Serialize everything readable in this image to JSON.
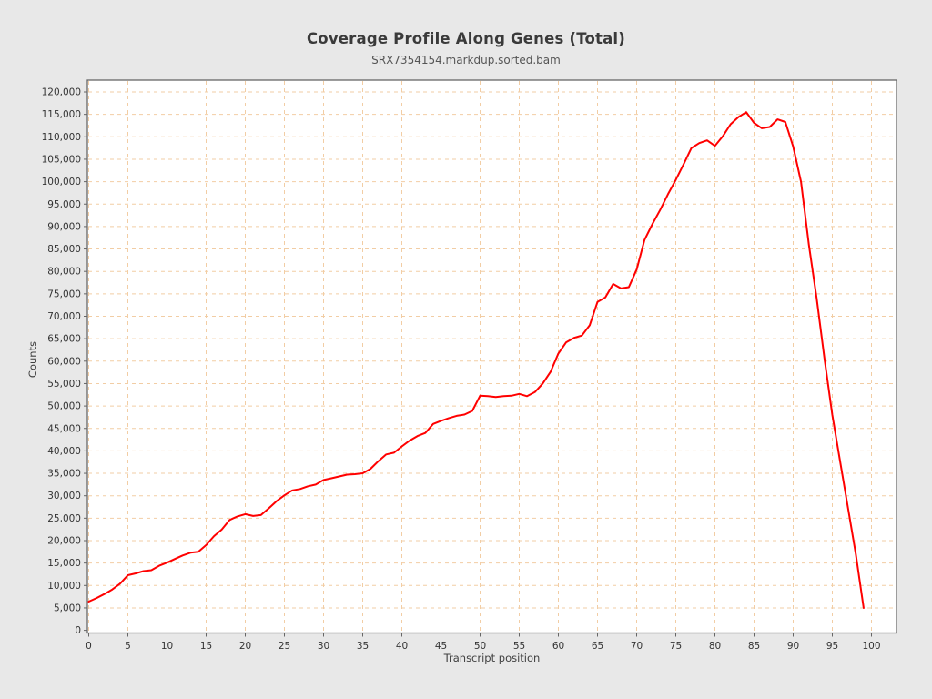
{
  "header": {
    "title": "Coverage Profile Along Genes (Total)",
    "subtitle": "SRX7354154.markdup.sorted.bam"
  },
  "colors": {
    "page_background": "#e8e8e8",
    "plot_background": "#ffffff",
    "grid_line": "#f2cda4",
    "series_line": "#ff0000",
    "plot_border": "#666666",
    "tick_text": "#333333"
  },
  "chart_data": {
    "type": "line",
    "title": "Coverage Profile Along Genes (Total)",
    "subtitle": "SRX7354154.markdup.sorted.bam",
    "xlabel": "Transcript position",
    "ylabel": "Counts",
    "xlim": [
      0,
      100
    ],
    "ylim": [
      0,
      120000
    ],
    "grid": true,
    "legend": "none",
    "x_ticks": [
      0,
      5,
      10,
      15,
      20,
      25,
      30,
      35,
      40,
      45,
      50,
      55,
      60,
      65,
      70,
      75,
      80,
      85,
      90,
      95,
      100
    ],
    "y_ticks": [
      0,
      5000,
      10000,
      15000,
      20000,
      25000,
      30000,
      35000,
      40000,
      45000,
      50000,
      55000,
      60000,
      65000,
      70000,
      75000,
      80000,
      85000,
      90000,
      95000,
      100000,
      105000,
      110000,
      115000,
      120000
    ],
    "series": [
      {
        "name": "SRX7354154.markdup.sorted.bam",
        "x": [
          0,
          1,
          2,
          3,
          4,
          5,
          6,
          7,
          8,
          9,
          10,
          11,
          12,
          13,
          14,
          15,
          16,
          17,
          18,
          19,
          20,
          21,
          22,
          23,
          24,
          25,
          26,
          27,
          28,
          29,
          30,
          31,
          32,
          33,
          34,
          35,
          36,
          37,
          38,
          39,
          40,
          41,
          42,
          43,
          44,
          45,
          46,
          47,
          48,
          49,
          50,
          51,
          52,
          53,
          54,
          55,
          56,
          57,
          58,
          59,
          60,
          61,
          62,
          63,
          64,
          65,
          66,
          67,
          68,
          69,
          70,
          71,
          72,
          73,
          74,
          75,
          76,
          77,
          78,
          79,
          80,
          81,
          82,
          83,
          84,
          85,
          86,
          87,
          88,
          89,
          90,
          91,
          92,
          93,
          94,
          95,
          96,
          97,
          98,
          99
        ],
        "values": [
          6400,
          7200,
          8100,
          9100,
          10400,
          12300,
          12700,
          13200,
          13400,
          14400,
          15100,
          15900,
          16700,
          17300,
          17500,
          19000,
          21000,
          22500,
          24600,
          25400,
          25900,
          25500,
          25700,
          27200,
          28800,
          30100,
          31200,
          31500,
          32100,
          32500,
          33500,
          33900,
          34300,
          34700,
          34800,
          35000,
          36000,
          37700,
          39200,
          39600,
          41000,
          42300,
          43300,
          44000,
          46000,
          46700,
          47300,
          47800,
          48100,
          48900,
          52300,
          52200,
          52000,
          52200,
          52300,
          52700,
          52200,
          53100,
          55000,
          57600,
          61700,
          64200,
          65200,
          65700,
          68000,
          73200,
          74200,
          77200,
          76200,
          76500,
          80400,
          87000,
          90500,
          93700,
          97200,
          100400,
          103900,
          107500,
          108600,
          109200,
          108000,
          110100,
          112800,
          114400,
          115500,
          113100,
          111900,
          112200,
          113900,
          113300,
          107800,
          100000,
          86000,
          74000,
          60500,
          48000,
          37600,
          27300,
          17000,
          5000
        ]
      }
    ]
  }
}
